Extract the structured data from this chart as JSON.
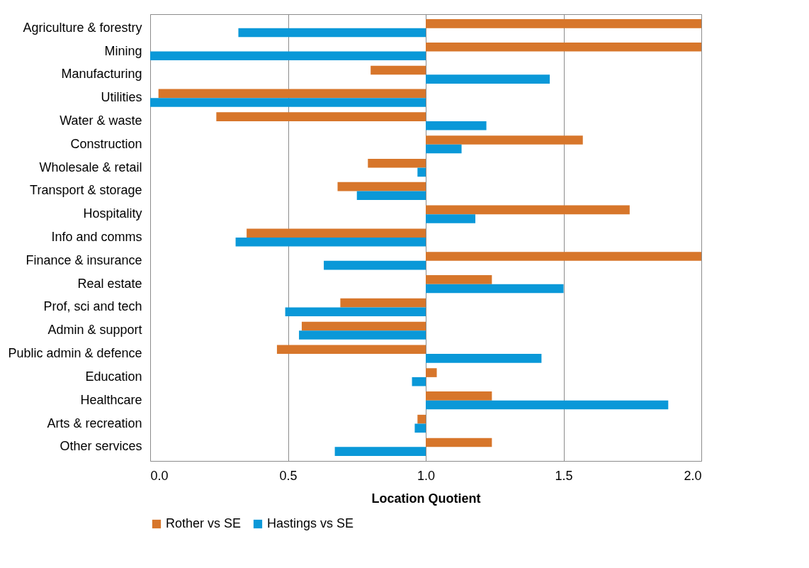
{
  "chart_data": {
    "type": "bar",
    "orientation": "horizontal",
    "xlabel": "Location Quotient",
    "categories": [
      "Agriculture & forestry",
      "Mining",
      "Manufacturing",
      "Utilities",
      "Water & waste ",
      "Construction",
      "Wholesale & retail",
      "Transport & storage",
      "Hospitality",
      "Info and comms",
      "Finance & insurance",
      "Real estate",
      "Prof, sci and tech",
      "Admin & support ",
      "Public admin & defence",
      "Education",
      "Healthcare",
      "Arts & recreation",
      "Other services"
    ],
    "series": [
      {
        "name": "Rother vs SE",
        "color": "#d7762b",
        "base": [
          1,
          1,
          1,
          1,
          1,
          1,
          1,
          1,
          1,
          1,
          1,
          1,
          1,
          1,
          1,
          1,
          1,
          1,
          1
        ],
        "values": [
          1.0,
          1.0,
          -0.2,
          -0.97,
          -0.76,
          0.57,
          -0.21,
          -0.32,
          0.74,
          -0.65,
          1.0,
          0.24,
          -0.31,
          -0.45,
          -0.54,
          0.04,
          0.24,
          -0.03,
          0.24
        ]
      },
      {
        "name": "Hastings vs SE",
        "color": "#0a98d8",
        "base": [
          1,
          1,
          1,
          1,
          1,
          1,
          1,
          1,
          1,
          1,
          1,
          1,
          1,
          1,
          1,
          1,
          1,
          1,
          1
        ],
        "values": [
          -0.68,
          -1.0,
          0.45,
          -1.0,
          0.22,
          0.13,
          -0.03,
          -0.25,
          0.18,
          -0.69,
          -0.37,
          0.5,
          -0.51,
          -0.46,
          0.42,
          -0.05,
          0.88,
          -0.04,
          -0.33
        ]
      }
    ],
    "xlim": [
      0,
      2
    ],
    "xticks": [
      {
        "value": 0,
        "label": "0.0"
      },
      {
        "value": 0.5,
        "label": "0.5"
      },
      {
        "value": 1,
        "label": "1.0"
      },
      {
        "value": 1.5,
        "label": "1.5"
      },
      {
        "value": 2,
        "label": "2.0"
      }
    ],
    "grid": "x",
    "legend": "bottom"
  }
}
